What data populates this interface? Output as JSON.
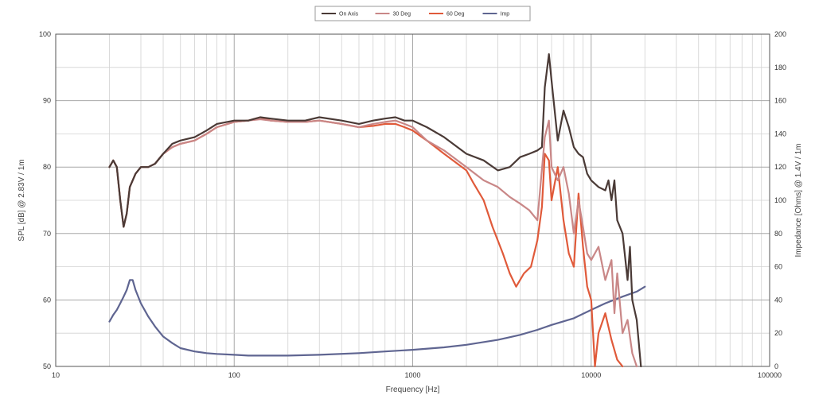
{
  "chart_data": {
    "type": "line",
    "xlabel": "Frequency [Hz]",
    "ylabel": "SPL [dB] @ 2.83V / 1m",
    "y2label": "Impedance [Ohms] @ 1.4V / 1m",
    "x_scale": "log",
    "xlim": [
      10,
      100000
    ],
    "ylim": [
      50,
      100
    ],
    "y2lim": [
      0,
      200
    ],
    "grid": true,
    "legend_position": "top-center",
    "x_ticks": [
      "10",
      "100",
      "1000",
      "10000",
      "100000"
    ],
    "y_ticks": [
      "50",
      "60",
      "70",
      "80",
      "90",
      "100"
    ],
    "y2_ticks": [
      "0",
      "20",
      "40",
      "60",
      "80",
      "100",
      "120",
      "140",
      "160",
      "180",
      "200"
    ],
    "series": [
      {
        "name": "On Axis",
        "axis": "left",
        "color": "#4a3a36",
        "x": [
          20,
          21,
          22,
          23,
          24,
          25,
          26,
          28,
          30,
          33,
          36,
          40,
          45,
          50,
          60,
          70,
          80,
          100,
          120,
          140,
          160,
          200,
          250,
          300,
          400,
          500,
          600,
          700,
          800,
          900,
          1000,
          1200,
          1500,
          2000,
          2500,
          3000,
          3500,
          4000,
          4500,
          5000,
          5300,
          5500,
          5800,
          6000,
          6500,
          7000,
          7500,
          8000,
          8500,
          9000,
          9500,
          10000,
          11000,
          12000,
          12500,
          13000,
          13500,
          14000,
          15000,
          16000,
          16500,
          17000,
          18000,
          19000
        ],
        "values": [
          80,
          81,
          80,
          75,
          71,
          73,
          77,
          79,
          80,
          80,
          80.5,
          82,
          83.5,
          84,
          84.5,
          85.5,
          86.5,
          87,
          87,
          87.5,
          87.3,
          87,
          87,
          87.5,
          87,
          86.5,
          87,
          87.3,
          87.5,
          87,
          87,
          86,
          84.5,
          82,
          81,
          79.5,
          80,
          81.5,
          82,
          82.5,
          83,
          92,
          97,
          93,
          84,
          88.5,
          86,
          83,
          82,
          81.5,
          79,
          78,
          77,
          76.5,
          78,
          75,
          78,
          72,
          70,
          63,
          68,
          60,
          57,
          50
        ]
      },
      {
        "name": "30 Deg",
        "axis": "left",
        "color": "#c98787",
        "x": [
          20,
          21,
          22,
          23,
          24,
          25,
          26,
          28,
          30,
          33,
          36,
          40,
          45,
          50,
          60,
          70,
          80,
          100,
          120,
          140,
          160,
          200,
          250,
          300,
          400,
          500,
          600,
          700,
          800,
          900,
          1000,
          1200,
          1500,
          2000,
          2500,
          3000,
          3500,
          4000,
          4500,
          5000,
          5500,
          5800,
          6000,
          6500,
          7000,
          7500,
          8000,
          8500,
          9000,
          9500,
          10000,
          11000,
          12000,
          13000,
          13500,
          14000,
          15000,
          16000,
          17000,
          18000
        ],
        "values": [
          80,
          81,
          80,
          75,
          71,
          73,
          77,
          79,
          80,
          80,
          80.5,
          82,
          83,
          83.5,
          84,
          85,
          86,
          86.8,
          87,
          87.2,
          87,
          86.8,
          86.8,
          87,
          86.5,
          86,
          86.5,
          86.8,
          87,
          86.5,
          86,
          84,
          82.5,
          80,
          78,
          77,
          75.5,
          74.5,
          73.5,
          72,
          84.5,
          87,
          80,
          78,
          80,
          76,
          70,
          75,
          71,
          67,
          66,
          68,
          63,
          66,
          58,
          64,
          55,
          57,
          52,
          50
        ]
      },
      {
        "name": "60 Deg",
        "axis": "left",
        "color": "#e05a3a",
        "x": [
          20,
          21,
          22,
          23,
          24,
          25,
          26,
          28,
          30,
          33,
          36,
          40,
          45,
          50,
          60,
          70,
          80,
          100,
          120,
          140,
          160,
          200,
          250,
          300,
          400,
          500,
          600,
          700,
          800,
          900,
          1000,
          1200,
          1500,
          2000,
          2200,
          2500,
          2800,
          3200,
          3500,
          3800,
          4200,
          4600,
          5000,
          5300,
          5500,
          5800,
          6000,
          6500,
          7000,
          7500,
          8000,
          8500,
          9000,
          9500,
          10000,
          10500,
          11000,
          12000,
          13000,
          14000,
          15000
        ],
        "values": [
          80,
          81,
          80,
          75,
          71,
          73,
          77,
          79,
          80,
          80,
          80.5,
          82,
          83,
          83.5,
          84,
          85,
          86,
          86.8,
          87,
          87.5,
          87,
          86.8,
          86.8,
          87,
          86.5,
          86,
          86.2,
          86.5,
          86.5,
          86,
          85.5,
          84,
          82,
          79.5,
          77.5,
          75,
          71,
          67,
          64,
          62,
          64,
          65,
          69,
          74,
          82,
          81,
          75,
          80,
          72,
          67,
          65,
          76,
          68,
          62,
          60,
          50,
          55,
          58,
          54,
          51,
          50
        ]
      },
      {
        "name": "Imp",
        "axis": "right",
        "color": "#5f6591",
        "x": [
          20,
          21,
          22,
          23,
          24,
          25,
          26,
          27,
          28,
          30,
          33,
          36,
          40,
          45,
          50,
          60,
          70,
          80,
          100,
          120,
          150,
          200,
          300,
          500,
          700,
          1000,
          1500,
          2000,
          3000,
          4000,
          5000,
          6000,
          8000,
          10000,
          12000,
          15000,
          18000,
          20000
        ],
        "values": [
          27,
          31,
          34,
          38,
          42,
          46,
          52,
          52,
          46,
          38,
          30,
          24,
          18,
          14,
          11,
          9,
          8,
          7.5,
          7,
          6.5,
          6.5,
          6.5,
          7,
          8,
          9,
          10,
          11.5,
          13,
          16,
          19,
          22,
          25,
          29,
          34,
          38,
          42,
          45,
          48
        ]
      }
    ]
  }
}
